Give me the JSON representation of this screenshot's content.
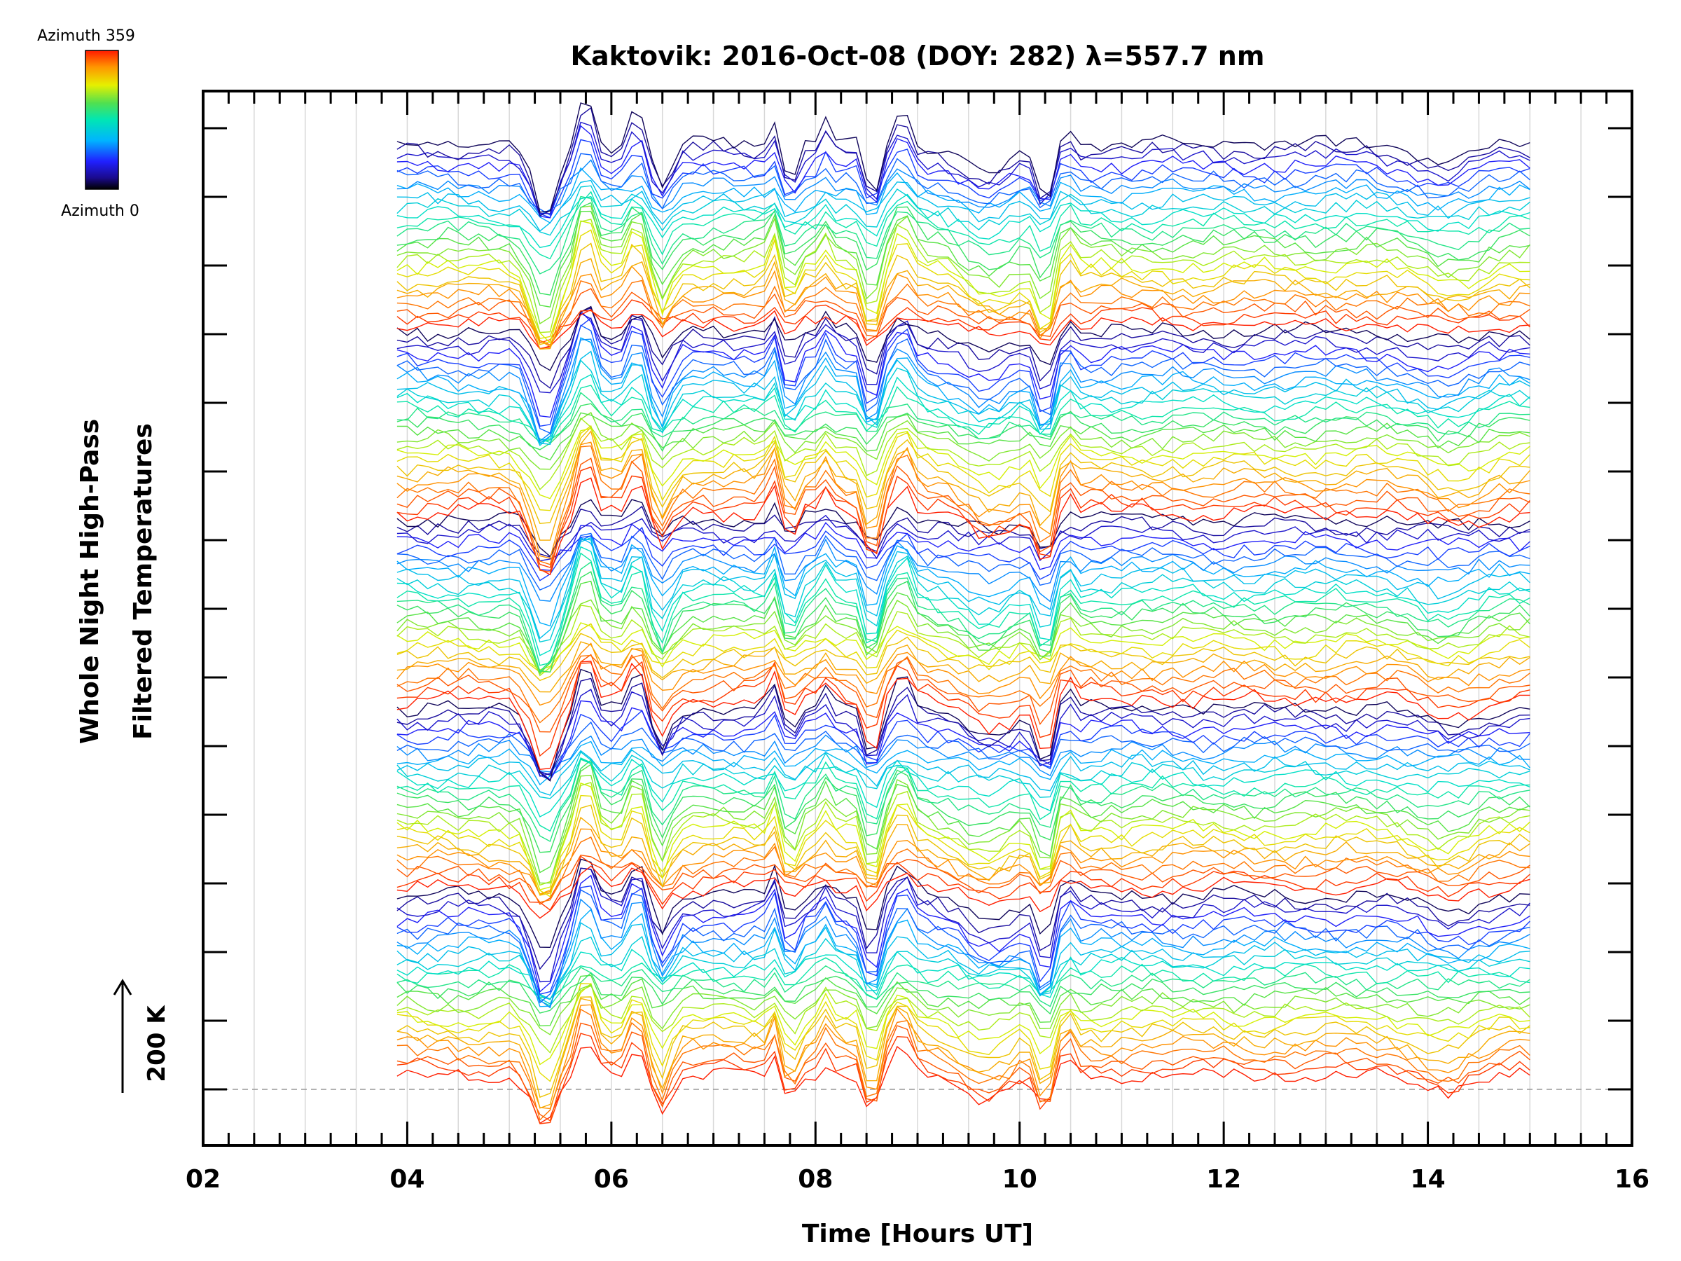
{
  "chart_data": {
    "type": "line",
    "title": "Kaktovik: 2016-Oct-08 (DOY: 282) λ=557.7 nm",
    "xlabel": "Time [Hours UT]",
    "ylabel_line1": "Whole Night High-Pass",
    "ylabel_line2": "Filtered Temperatures",
    "xlim": [
      2,
      16
    ],
    "x_ticks": [
      "02",
      "04",
      "06",
      "08",
      "10",
      "12",
      "14",
      "16"
    ],
    "x_tick_values": [
      2,
      4,
      6,
      8,
      10,
      12,
      14,
      16
    ],
    "time_range": [
      3.9,
      15.0
    ],
    "sample_step_hours": 0.1,
    "offset_scale": "200 K",
    "colorbar": {
      "colormap": "rainbow",
      "min_label": "Azimuth  0",
      "max_label": "Azimuth  359"
    },
    "grid": true,
    "series_description": "stacked azimuth traces, each offset vertically, colored by azimuth",
    "num_groups": 5,
    "traces_per_group": 26,
    "feature_events_hours": [
      5.35,
      5.75,
      6.25,
      6.5,
      7.6,
      7.75,
      8.1,
      8.55,
      8.85,
      10.25
    ],
    "series_colors": [
      "#000000",
      "#1a1aa0",
      "#3030e0",
      "#ff2a00",
      "#ff8c00",
      "#ffd000",
      "#c8f000",
      "#50e050",
      "#00e6b4",
      "#40c8ff"
    ]
  }
}
